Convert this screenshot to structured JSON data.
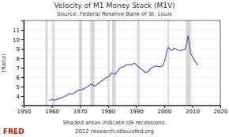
{
  "chart_data": {
    "type": "line",
    "title": "Velocity of M1 Money Stock (M1V)",
    "subtitle": "Source: Federal Reserve Bank of St. Louis",
    "ylabel": "(Ratio)",
    "annotations": [
      "Shaded areas indicate US recessions.",
      "2012 research.stlouisfed.org",
      "FRED"
    ],
    "xlim": [
      1950,
      2020
    ],
    "ylim": [
      3,
      12
    ],
    "xticks": [
      1950,
      1960,
      1970,
      1980,
      1990,
      2000,
      2010,
      2020
    ],
    "yticks": [
      4,
      5,
      6,
      7,
      8,
      9,
      10,
      11
    ],
    "grid": true,
    "color": "#5555bb",
    "recessions": [
      [
        1957.75,
        1958.5
      ],
      [
        1960.25,
        1961.0
      ],
      [
        1969.75,
        1970.75
      ],
      [
        1973.75,
        1975.25
      ],
      [
        1980.0,
        1980.5
      ],
      [
        1981.5,
        1982.75
      ],
      [
        1990.5,
        1991.25
      ],
      [
        2001.25,
        2001.75
      ],
      [
        2007.75,
        2009.5
      ]
    ],
    "x": [
      1959.0,
      1959.5,
      1960.0,
      1960.5,
      1961.0,
      1961.5,
      1962.0,
      1962.5,
      1963.0,
      1963.5,
      1964.0,
      1964.5,
      1965.0,
      1965.5,
      1966.0,
      1966.5,
      1967.0,
      1967.5,
      1968.0,
      1968.5,
      1969.0,
      1969.5,
      1970.0,
      1970.5,
      1971.0,
      1971.5,
      1972.0,
      1972.5,
      1973.0,
      1973.5,
      1974.0,
      1974.5,
      1975.0,
      1975.5,
      1976.0,
      1976.5,
      1977.0,
      1977.5,
      1978.0,
      1978.5,
      1979.0,
      1979.5,
      1980.0,
      1980.5,
      1981.0,
      1981.5,
      1982.0,
      1982.5,
      1983.0,
      1983.5,
      1984.0,
      1984.5,
      1985.0,
      1985.5,
      1986.0,
      1986.5,
      1987.0,
      1987.5,
      1988.0,
      1988.5,
      1989.0,
      1989.5,
      1990.0,
      1990.5,
      1991.0,
      1991.5,
      1992.0,
      1992.5,
      1993.0,
      1993.5,
      1994.0,
      1994.5,
      1995.0,
      1995.5,
      1996.0,
      1996.5,
      1997.0,
      1997.5,
      1998.0,
      1998.5,
      1999.0,
      1999.5,
      2000.0,
      2000.5,
      2001.0,
      2001.5,
      2002.0,
      2002.5,
      2003.0,
      2003.5,
      2004.0,
      2004.5,
      2005.0,
      2005.5,
      2006.0,
      2006.5,
      2007.0,
      2007.5,
      2008.0,
      2008.5,
      2009.0,
      2009.5,
      2010.0,
      2010.5,
      2011.0,
      2011.5,
      2012.0
    ],
    "values": [
      3.52,
      3.58,
      3.65,
      3.6,
      3.58,
      3.62,
      3.68,
      3.72,
      3.78,
      3.82,
      3.9,
      3.95,
      4.02,
      4.1,
      4.2,
      4.25,
      4.2,
      4.22,
      4.35,
      4.42,
      4.55,
      4.6,
      4.65,
      4.68,
      4.72,
      4.78,
      4.88,
      4.95,
      5.05,
      5.15,
      5.22,
      5.25,
      5.05,
      5.1,
      5.2,
      5.32,
      5.42,
      5.52,
      5.65,
      5.75,
      5.88,
      5.95,
      6.05,
      6.15,
      6.35,
      6.45,
      6.38,
      6.28,
      6.48,
      6.65,
      6.88,
      7.0,
      7.05,
      7.1,
      7.18,
      7.28,
      7.35,
      7.32,
      7.3,
      7.32,
      7.42,
      7.48,
      7.32,
      7.22,
      7.05,
      6.95,
      6.82,
      6.72,
      6.55,
      6.48,
      6.55,
      6.62,
      6.85,
      6.95,
      7.05,
      7.12,
      7.18,
      7.18,
      7.12,
      7.1,
      7.15,
      7.2,
      7.55,
      8.05,
      8.85,
      9.15,
      8.95,
      8.85,
      8.9,
      9.05,
      9.0,
      8.92,
      8.85,
      8.82,
      8.85,
      8.88,
      8.92,
      8.95,
      9.5,
      10.4,
      9.5,
      8.5,
      8.2,
      7.95,
      7.7,
      7.5,
      7.25
    ]
  }
}
